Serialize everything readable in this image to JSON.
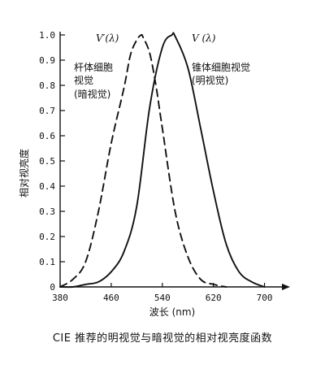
{
  "caption": "CIE 推荐的明视觉与暗视觉的相对视亮度函数",
  "chart_data": {
    "type": "line",
    "xlabel": "波长 (nm)",
    "ylabel": "相对视亮度",
    "xlim": [
      380,
      740
    ],
    "ylim": [
      0,
      1.0
    ],
    "x_ticks": [
      380,
      460,
      540,
      620,
      700
    ],
    "y_ticks": [
      0,
      0.1,
      0.2,
      0.3,
      0.4,
      0.5,
      0.6,
      0.7,
      0.8,
      0.9,
      1.0
    ],
    "y_tick_labels": [
      "0",
      "0.1",
      "0.2",
      "0.3",
      "0.4",
      "0.5",
      "0.6",
      "0.7",
      "0.8",
      "0.9",
      "1.0"
    ],
    "grid": false,
    "series": [
      {
        "name": "V′(λ)",
        "label_lines": [
          "杆体细胞",
          "视觉",
          "(暗视觉)"
        ],
        "style": "dashed",
        "x": [
          380,
          400,
          420,
          440,
          460,
          480,
          490,
          500,
          507,
          510,
          520,
          530,
          540,
          560,
          580,
          600,
          620,
          640
        ],
        "y": [
          0.0,
          0.03,
          0.1,
          0.3,
          0.57,
          0.79,
          0.92,
          0.98,
          1.0,
          0.99,
          0.93,
          0.8,
          0.63,
          0.3,
          0.12,
          0.03,
          0.01,
          0.0
        ]
      },
      {
        "name": "V (λ)",
        "label_lines": [
          "锥体细胞视觉",
          "(明视觉)"
        ],
        "style": "solid",
        "x": [
          380,
          400,
          420,
          440,
          460,
          480,
          500,
          520,
          540,
          555,
          560,
          580,
          600,
          620,
          640,
          660,
          680,
          700
        ],
        "y": [
          0.0,
          0.0,
          0.01,
          0.02,
          0.06,
          0.14,
          0.32,
          0.71,
          0.95,
          1.0,
          0.995,
          0.87,
          0.63,
          0.38,
          0.17,
          0.06,
          0.02,
          0.0
        ]
      }
    ]
  }
}
